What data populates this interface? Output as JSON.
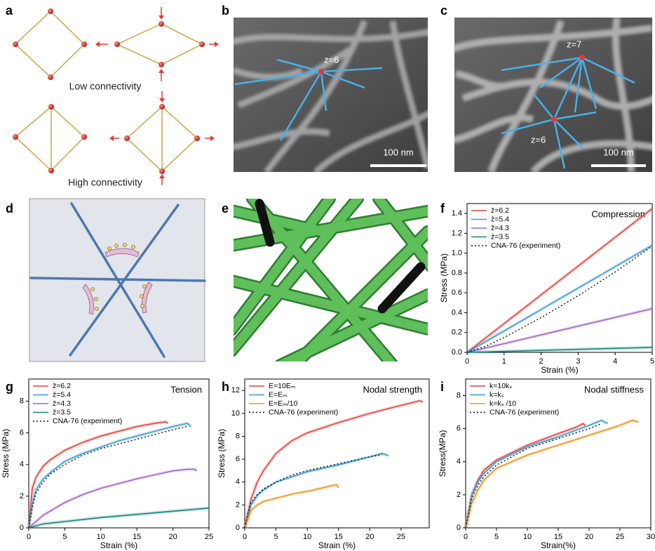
{
  "panel_labels": [
    "a",
    "b",
    "c",
    "d",
    "e",
    "f",
    "g",
    "h",
    "i"
  ],
  "panels": {
    "a": {
      "top_caption": "Low connectivity",
      "bottom_caption": "High connectivity"
    },
    "b": {
      "node_label": "z=6",
      "scale_bar": "100 nm"
    },
    "c": {
      "node_labels": [
        "z=7",
        "z=6"
      ],
      "scale_bar": "100 nm"
    }
  },
  "chart_data": [
    {
      "type": "line",
      "annotation": "Compression",
      "x_label": "Strain (%)",
      "y_label": "Stress (MPa)",
      "xlim": [
        0,
        5
      ],
      "xticks": [
        0,
        1,
        2,
        3,
        4,
        5
      ],
      "ylim": [
        0,
        1.5
      ],
      "yticks": [
        {
          "value": 0,
          "label": "0.0"
        },
        {
          "value": 0.2,
          "label": "0.2"
        },
        {
          "value": 0.4,
          "label": "0.4"
        },
        {
          "value": 0.6,
          "label": "0.6"
        },
        {
          "value": 0.8,
          "label": "0.8"
        },
        {
          "value": 1.0,
          "label": "1.0"
        },
        {
          "value": 1.2,
          "label": "1.2"
        },
        {
          "value": 1.4,
          "label": "1.4"
        }
      ],
      "legend": "upper left",
      "series": [
        {
          "name": "z̄=6.2",
          "color": "#e8403c",
          "x": [
            0,
            5
          ],
          "values": [
            0,
            1.45
          ]
        },
        {
          "name": "z̄=5.4",
          "color": "#3a9ad4",
          "x": [
            0,
            5
          ],
          "values": [
            0,
            1.08
          ]
        },
        {
          "name": "z̄=4.3",
          "color": "#a066c8",
          "x": [
            0,
            5
          ],
          "values": [
            0,
            0.44
          ]
        },
        {
          "name": "z̄=3.5",
          "color": "#13877a",
          "x": [
            0,
            5
          ],
          "values": [
            0,
            0.05
          ]
        },
        {
          "name": "CNA-76 (experiment)",
          "color": "#111111",
          "style": "dotted",
          "x": [
            0,
            0.5,
            1,
            2,
            3,
            4,
            5
          ],
          "values": [
            0,
            0.06,
            0.15,
            0.35,
            0.57,
            0.81,
            1.07
          ]
        }
      ]
    },
    {
      "type": "line",
      "annotation": "Tension",
      "x_label": "Strain (%)",
      "y_label": "Stress (MPa)",
      "xlim": [
        0,
        25
      ],
      "xticks": [
        0,
        5,
        10,
        15,
        20,
        25
      ],
      "ylim": [
        0,
        9.4
      ],
      "yticks": [
        0,
        2,
        4,
        6,
        8
      ],
      "legend": "upper left",
      "series": [
        {
          "name": "z̄=6.2",
          "color": "#e8403c",
          "x": [
            0,
            0.5,
            1,
            2,
            3,
            5,
            7.5,
            10,
            12.5,
            15,
            17.5,
            19,
            19.3
          ],
          "values": [
            0,
            2.5,
            3.2,
            3.9,
            4.3,
            4.9,
            5.4,
            5.8,
            6.1,
            6.4,
            6.6,
            6.7,
            6.6
          ]
        },
        {
          "name": "z̄=5.4",
          "color": "#3a9ad4",
          "x": [
            0,
            0.5,
            1,
            2,
            3,
            5,
            7.5,
            10,
            12.5,
            15,
            17.5,
            20,
            22,
            22.5
          ],
          "values": [
            0,
            1.5,
            2.4,
            3.1,
            3.5,
            4.2,
            4.7,
            5.1,
            5.5,
            5.8,
            6.1,
            6.4,
            6.6,
            6.4
          ]
        },
        {
          "name": "z̄=4.3",
          "color": "#a066c8",
          "x": [
            0,
            2,
            5,
            7.5,
            10,
            12.5,
            15,
            17.5,
            20,
            22,
            23,
            23.3
          ],
          "values": [
            0,
            0.8,
            1.6,
            2.1,
            2.5,
            2.8,
            3.1,
            3.35,
            3.6,
            3.7,
            3.7,
            3.6
          ]
        },
        {
          "name": "z̄=3.5",
          "color": "#13877a",
          "x": [
            0,
            2,
            5,
            10,
            15,
            20,
            25
          ],
          "values": [
            0,
            0.25,
            0.4,
            0.65,
            0.85,
            1.05,
            1.25
          ]
        },
        {
          "name": "CNA-76 (experiment)",
          "color": "#111111",
          "style": "dotted",
          "x": [
            0,
            0.5,
            1,
            2,
            3,
            5,
            7.5,
            10,
            12.5,
            15,
            17.5,
            20,
            22
          ],
          "values": [
            0,
            1.3,
            2.2,
            2.9,
            3.4,
            4.0,
            4.6,
            5.0,
            5.3,
            5.6,
            5.9,
            6.2,
            6.4
          ]
        }
      ]
    },
    {
      "type": "line",
      "annotation": "Nodal strength",
      "x_label": "Strain (%)",
      "y_label": "Stress (MPa)",
      "xlim": [
        0,
        29.5
      ],
      "xticks": [
        0,
        5,
        10,
        15,
        20,
        25
      ],
      "ylim": [
        0,
        13
      ],
      "yticks": [
        0,
        2,
        4,
        6,
        8,
        10,
        12
      ],
      "legend": "upper left",
      "series": [
        {
          "name": "E=10Eₘ",
          "color": "#e8403c",
          "x": [
            0,
            1,
            2,
            3,
            5,
            7.5,
            10,
            15,
            20,
            25,
            28,
            28.5
          ],
          "values": [
            0,
            2.5,
            4,
            5,
            6.5,
            7.6,
            8.3,
            9.2,
            10,
            10.7,
            11.1,
            11
          ]
        },
        {
          "name": "E=Eₘ",
          "color": "#3a9ad4",
          "x": [
            0,
            1,
            2,
            3,
            5,
            10,
            15,
            20,
            22,
            23
          ],
          "values": [
            0,
            2,
            2.8,
            3.3,
            4,
            4.9,
            5.5,
            6.2,
            6.5,
            6.3
          ]
        },
        {
          "name": "E=Eₘ/10",
          "color": "#f0921e",
          "x": [
            0,
            1,
            2,
            3,
            5,
            8,
            11,
            14,
            14.7,
            15
          ],
          "values": [
            0,
            1.5,
            2.0,
            2.3,
            2.6,
            3.0,
            3.3,
            3.7,
            3.75,
            3.5
          ]
        },
        {
          "name": "CNA-76 (experiment)",
          "color": "#111111",
          "style": "dotted",
          "x": [
            0,
            0.5,
            1,
            2,
            3,
            5,
            7.5,
            10,
            12.5,
            15,
            17.5,
            20,
            22
          ],
          "values": [
            0,
            1.3,
            2.2,
            2.9,
            3.4,
            4.0,
            4.6,
            5.0,
            5.3,
            5.6,
            5.9,
            6.2,
            6.4
          ]
        }
      ]
    },
    {
      "type": "line",
      "annotation": "Nodal stiffness",
      "x_label": "Strain(%)",
      "y_label": "Stress(MPa)",
      "xlim": [
        0,
        30
      ],
      "xticks": [
        0,
        5,
        10,
        15,
        20,
        25,
        30
      ],
      "ylim": [
        0,
        9
      ],
      "yticks": [
        0,
        2,
        4,
        6,
        8
      ],
      "legend": "upper left",
      "series": [
        {
          "name": "k=10kₛ",
          "color": "#e8403c",
          "x": [
            0,
            1,
            2,
            3,
            5,
            10,
            15,
            18,
            19,
            19.4
          ],
          "values": [
            0,
            2,
            2.9,
            3.5,
            4.1,
            5,
            5.7,
            6.1,
            6.3,
            6.2
          ]
        },
        {
          "name": "k=kₛ",
          "color": "#3a9ad4",
          "x": [
            0,
            1,
            2,
            3,
            5,
            10,
            15,
            20,
            22,
            23
          ],
          "values": [
            0,
            2,
            2.8,
            3.3,
            4,
            4.9,
            5.5,
            6.2,
            6.5,
            6.3
          ]
        },
        {
          "name": "k=kₛ /10",
          "color": "#f0921e",
          "x": [
            0,
            1,
            2,
            3,
            5,
            10,
            15,
            20,
            25,
            27,
            28
          ],
          "values": [
            0,
            1.5,
            2.3,
            2.9,
            3.6,
            4.4,
            5,
            5.6,
            6.2,
            6.5,
            6.4
          ]
        },
        {
          "name": "CNA-76 (experiment)",
          "color": "#111111",
          "style": "dotted",
          "x": [
            0,
            1,
            2,
            3,
            5,
            10,
            15,
            20,
            22
          ],
          "values": [
            0,
            1.8,
            2.6,
            3.1,
            3.8,
            4.8,
            5.4,
            6.0,
            6.3
          ]
        }
      ]
    }
  ]
}
